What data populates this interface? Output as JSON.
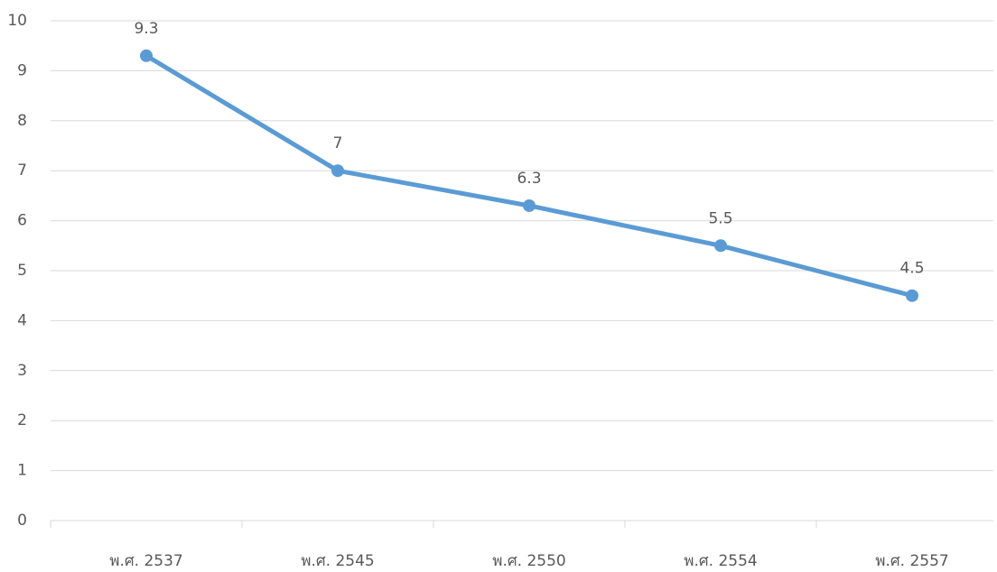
{
  "chart_data": {
    "type": "line",
    "categories": [
      "พ.ศ. 2537",
      "พ.ศ. 2545",
      "พ.ศ. 2550",
      "พ.ศ. 2554",
      "พ.ศ. 2557"
    ],
    "values": [
      9.3,
      7,
      6.3,
      5.5,
      4.5
    ],
    "color": "#5b9bd5",
    "ylim": [
      0,
      10
    ],
    "yticks": [
      0,
      1,
      2,
      3,
      4,
      5,
      6,
      7,
      8,
      9,
      10
    ],
    "grid": true
  }
}
